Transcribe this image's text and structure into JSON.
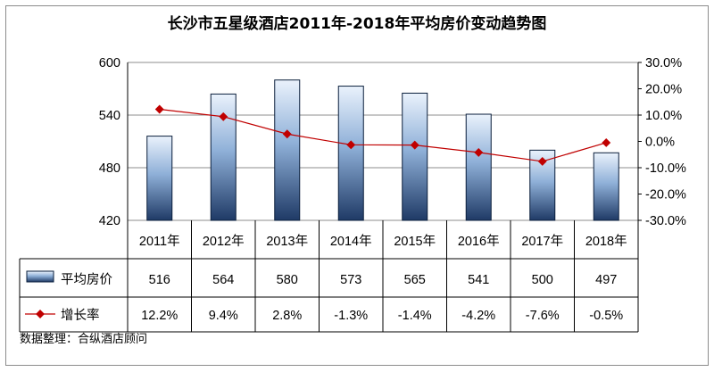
{
  "chart_data": {
    "type": "bar",
    "title": "长沙市五星级酒店2011年-2018年平均房价变动趋势图",
    "categories": [
      "2011年",
      "2012年",
      "2013年",
      "2014年",
      "2015年",
      "2016年",
      "2017年",
      "2018年"
    ],
    "series": [
      {
        "name": "平均房价",
        "type": "bar",
        "axis": "left",
        "values": [
          516,
          564,
          580,
          573,
          565,
          541,
          500,
          497
        ],
        "labels": [
          "516",
          "564",
          "580",
          "573",
          "565",
          "541",
          "500",
          "497"
        ]
      },
      {
        "name": "增长率",
        "type": "line",
        "axis": "right",
        "unit": "%",
        "values": [
          12.2,
          9.4,
          2.8,
          -1.3,
          -1.4,
          -4.2,
          -7.6,
          -0.5
        ],
        "labels": [
          "12.2%",
          "9.4%",
          "2.8%",
          "-1.3%",
          "-1.4%",
          "-4.2%",
          "-7.6%",
          "-0.5%"
        ]
      }
    ],
    "y_left": {
      "min": 420,
      "max": 600,
      "ticks": [
        "600",
        "540",
        "480",
        "420"
      ],
      "tick_values": [
        600,
        540,
        480,
        420
      ]
    },
    "y_right": {
      "min": -30,
      "max": 30,
      "ticks": [
        "30.0%",
        "20.0%",
        "10.0%",
        "0.0%",
        "-10.0%",
        "-20.0%",
        "-30.0%"
      ],
      "tick_values": [
        30,
        20,
        10,
        0,
        -10,
        -20,
        -30
      ]
    },
    "grid": true,
    "legend": "data-table",
    "source_note": "数据整理：合纵酒店顾问"
  },
  "colors": {
    "bar_top": "#e8f1fb",
    "bar_bottom": "#1f3a66",
    "bar_edge": "#0a1f3c",
    "line": "#c00000",
    "grid": "#8c8c8c"
  }
}
